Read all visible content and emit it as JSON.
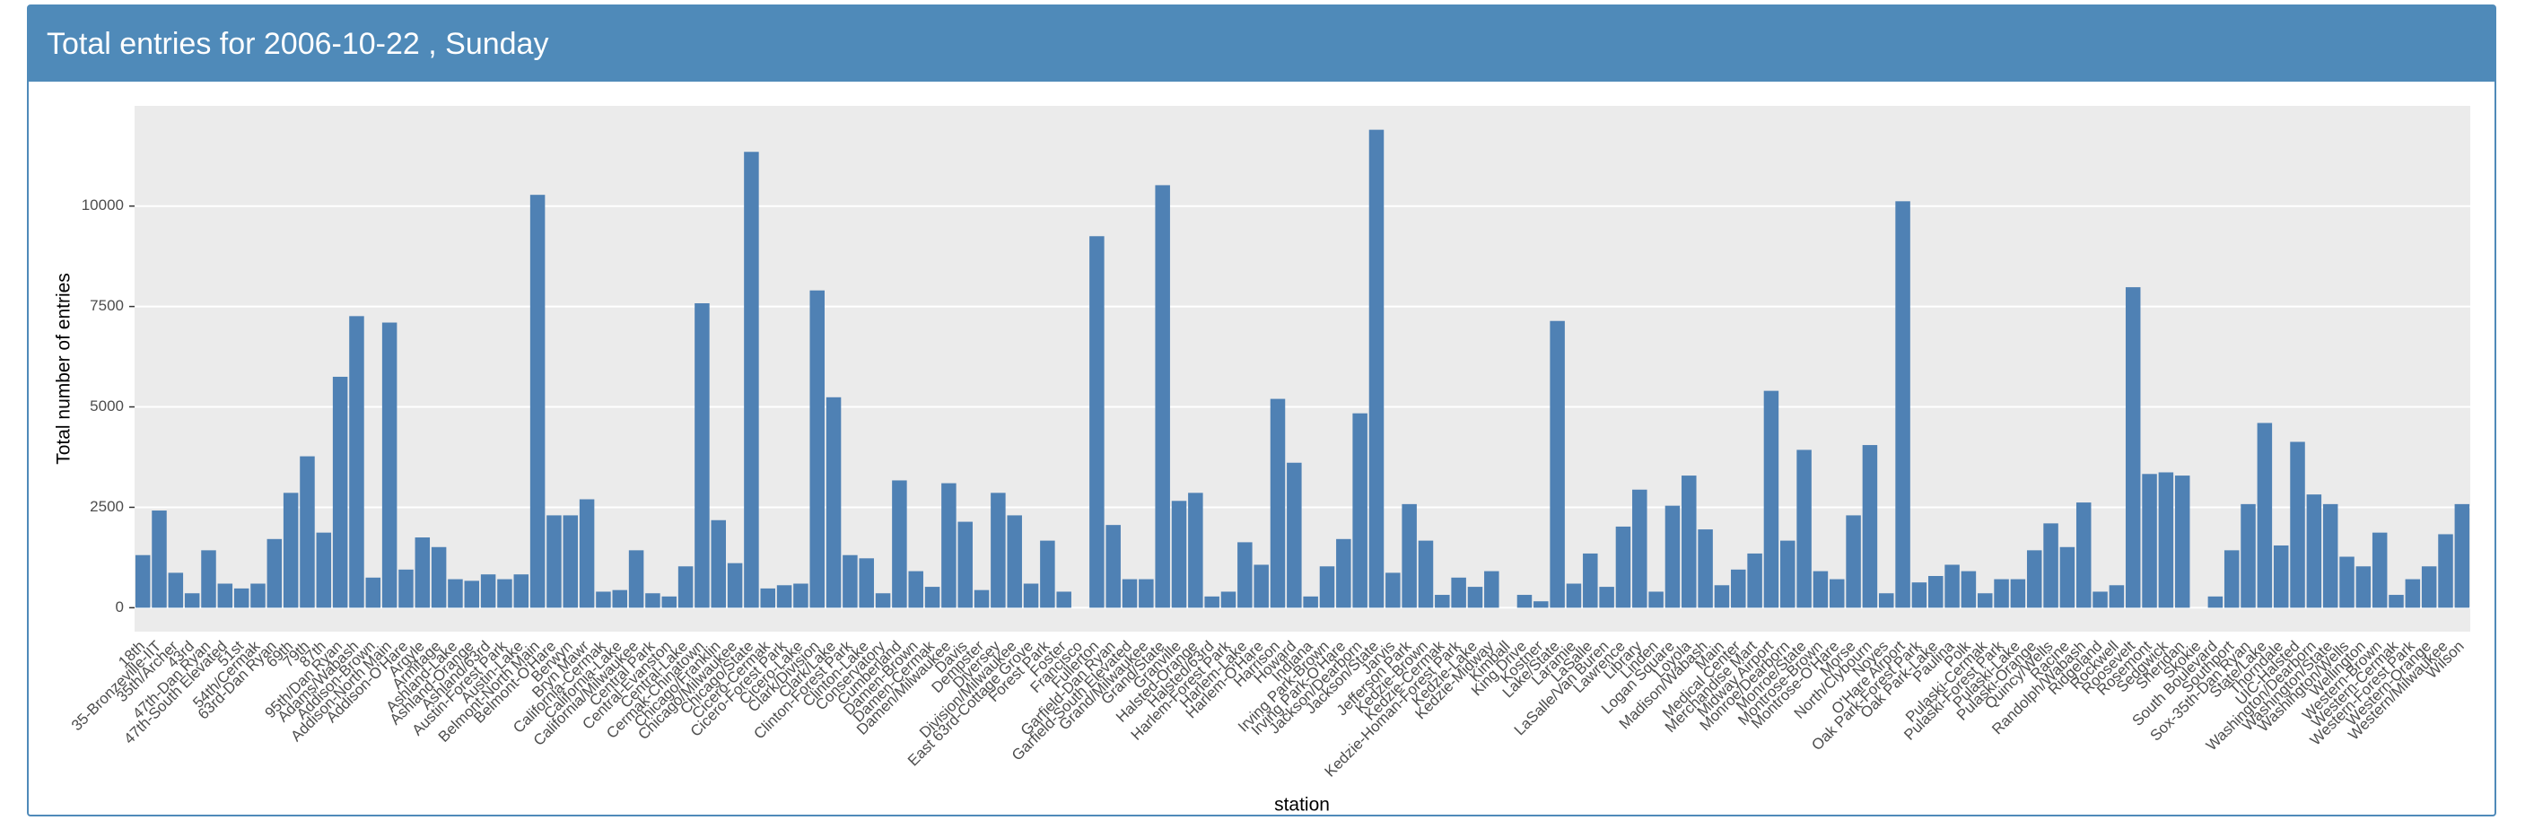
{
  "chart_data": {
    "type": "bar",
    "title": "Total entries for 2006-10-22 , Sunday",
    "x_label": "station",
    "y_label": "Total number of entries",
    "categories": [
      "18th",
      "35-Bronzeville-IIT",
      "35th/Archer",
      "43rd",
      "47th-Dan Ryan",
      "47th-South Elevated",
      "51st",
      "54th/Cermak",
      "63rd-Dan Ryan",
      "69th",
      "79th",
      "87th",
      "95th/Dan Ryan",
      "Adams/Wabash",
      "Addison-Brown",
      "Addison-North Main",
      "Addison-O'Hare",
      "Argyle",
      "Armitage",
      "Ashland-Lake",
      "Ashland-Orange",
      "Ashland/63rd",
      "Austin-Forest Park",
      "Austin-Lake",
      "Belmont-North Main",
      "Belmont-O'Hare",
      "Berwyn",
      "Bryn Mawr",
      "California-Cermak",
      "California-Lake",
      "California/Milwaukee",
      "Central Park",
      "Central-Evanston",
      "Central-Lake",
      "Cermak-Chinatown",
      "Chicago/Franklin",
      "Chicago/Milwaukee",
      "Chicago/State",
      "Cicero-Cermak",
      "Cicero-Forest Park",
      "Cicero-Lake",
      "Clark/Division",
      "Clark/Lake",
      "Clinton-Forest Park",
      "Clinton-Lake",
      "Conservatory",
      "Cumberland",
      "Damen-Brown",
      "Damen-Cermak",
      "Damen/Milwaukee",
      "Davis",
      "Dempster",
      "Diversey",
      "Division/Milwaukee",
      "East 63rd-Cottage Grove",
      "Forest Park",
      "Foster",
      "Francisco",
      "Fullerton",
      "Garfield-Dan Ryan",
      "Garfield-South Elevated",
      "Grand/Milwaukee",
      "Grand/State",
      "Granville",
      "Halsted-Orange",
      "Halsted/63rd",
      "Harlem-Forest Park",
      "Harlem-Lake",
      "Harlem-O'Hare",
      "Harrison",
      "Howard",
      "Indiana",
      "Irving Park-Brown",
      "Irving Park-O'Hare",
      "Jackson/Dearborn",
      "Jackson/State",
      "Jarvis",
      "Jefferson Park",
      "Kedzie-Brown",
      "Kedzie-Cermak",
      "Kedzie-Homan-Forest Park",
      "Kedzie-Lake",
      "Kedzie-Midway",
      "Kimball",
      "King Drive",
      "Kostner",
      "Lake/State",
      "Laramie",
      "LaSalle",
      "LaSalle/Van Buren",
      "Lawrence",
      "Library",
      "Linden",
      "Logan Square",
      "Loyola",
      "Madison/Wabash",
      "Main",
      "Medical Center",
      "Merchandise Mart",
      "Midway Airport",
      "Monroe/Dearborn",
      "Monroe/State",
      "Montrose-Brown",
      "Montrose-O'Hare",
      "Morse",
      "North/Clybourn",
      "Noyes",
      "O'Hare Airport",
      "Oak Park-Forest Park",
      "Oak Park-Lake",
      "Paulina",
      "Polk",
      "Pulaski-Cermak",
      "Pulaski-Forest Park",
      "Pulaski-Lake",
      "Pulaski-Orange",
      "Quincy/Wells",
      "Racine",
      "Randolph/Wabash",
      "Ridgeland",
      "Rockwell",
      "Roosevelt",
      "Rosemont",
      "Sedgwick",
      "Sheridan",
      "Skokie",
      "South Boulevard",
      "Southport",
      "Sox-35th-Dan Ryan",
      "State/Lake",
      "Thorndale",
      "UIC-Halsted",
      "Washington/Dearborn",
      "Washington/State",
      "Washington/Wells",
      "Wellington",
      "Western-Brown",
      "Western-Cermak",
      "Western-Forest Park",
      "Western-Orange",
      "Western/Milwaukee",
      "Wilson"
    ],
    "values": [
      1310,
      2420,
      870,
      360,
      1430,
      600,
      480,
      600,
      1710,
      2860,
      3770,
      1870,
      5750,
      7260,
      750,
      7100,
      950,
      1750,
      1510,
      710,
      670,
      830,
      710,
      830,
      10280,
      2300,
      2300,
      2700,
      400,
      440,
      1430,
      360,
      280,
      1030,
      7580,
      2180,
      1110,
      11350,
      480,
      560,
      600,
      7900,
      5240,
      1310,
      1230,
      360,
      3170,
      910,
      520,
      3100,
      2140,
      440,
      2860,
      2300,
      600,
      1670,
      400,
      0,
      9250,
      2060,
      710,
      710,
      10520,
      2660,
      2860,
      280,
      400,
      1630,
      1070,
      5200,
      3610,
      280,
      1030,
      1710,
      4840,
      11900,
      870,
      2580,
      1670,
      320,
      750,
      520,
      910,
      0,
      320,
      160,
      7140,
      600,
      1350,
      520,
      2020,
      2940,
      400,
      2540,
      3290,
      1950,
      560,
      950,
      1350,
      5400,
      1670,
      3930,
      910,
      710,
      2300,
      4050,
      360,
      10120,
      630,
      790,
      1070,
      910,
      360,
      710,
      710,
      1430,
      2100,
      1510,
      2620,
      400,
      560,
      7980,
      3330,
      3370,
      3290,
      0,
      280,
      1430,
      2580,
      4600,
      1550,
      4130,
      2820,
      2580,
      1270,
      1030,
      1870,
      320,
      710,
      1030,
      1830,
      2580
    ],
    "color": "#4f81b4",
    "ylim": [
      -595,
      12495
    ],
    "yticks": [
      0,
      2500,
      5000,
      7500,
      10000
    ],
    "grid": true
  }
}
